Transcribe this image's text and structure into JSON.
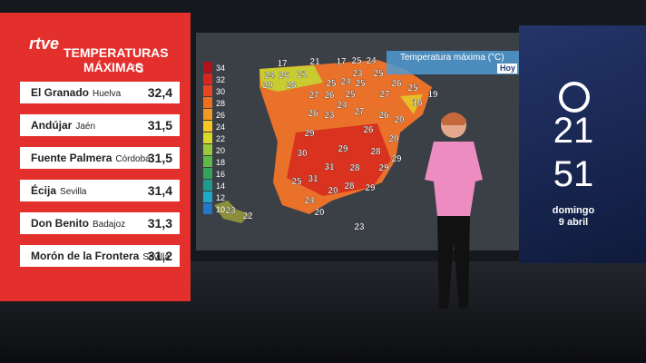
{
  "channel": "rtve",
  "panel": {
    "title": "TEMPERATURAS MÁXIMAS",
    "unit": "°C",
    "rows": [
      {
        "place": "El Granado",
        "province": "Huelva",
        "value": "32,4"
      },
      {
        "place": "Andújar",
        "province": "Jaén",
        "value": "31,5"
      },
      {
        "place": "Fuente Palmera",
        "province": "Córdoba",
        "value": "31,5"
      },
      {
        "place": "Écija",
        "province": "Sevilla",
        "value": "31,4"
      },
      {
        "place": "Don Benito",
        "province": "Badajoz",
        "value": "31,3"
      },
      {
        "place": "Morón de la Frontera",
        "province": "Sevilla",
        "value": "31,2"
      }
    ]
  },
  "map": {
    "title": "Temperatura máxima (°C)",
    "day": "Hoy",
    "scale": [
      {
        "value": 34,
        "color": "#b3121a"
      },
      {
        "value": 32,
        "color": "#d8261f"
      },
      {
        "value": 30,
        "color": "#e8461f"
      },
      {
        "value": 28,
        "color": "#ef6f1f"
      },
      {
        "value": 26,
        "color": "#f39a22"
      },
      {
        "value": 24,
        "color": "#f5c626"
      },
      {
        "value": 22,
        "color": "#d9d92a"
      },
      {
        "value": 20,
        "color": "#9cc93a"
      },
      {
        "value": 18,
        "color": "#5fb847"
      },
      {
        "value": 16,
        "color": "#35a45a"
      },
      {
        "value": 14,
        "color": "#1f9c8a"
      },
      {
        "value": 12,
        "color": "#1fa8c8"
      },
      {
        "value": 10,
        "color": "#2277c8"
      }
    ],
    "labels": [
      17,
      21,
      17,
      25,
      24,
      24,
      26,
      21,
      23,
      25,
      20,
      28,
      25,
      24,
      25,
      26,
      25,
      19,
      27,
      26,
      25,
      27,
      24,
      18,
      26,
      23,
      27,
      26,
      20,
      29,
      26,
      20,
      29,
      28,
      30,
      29,
      31,
      28,
      29,
      25,
      31,
      20,
      28,
      29,
      24,
      20,
      23,
      22,
      23
    ]
  },
  "clock": {
    "hour": "21",
    "minute": "51",
    "weekday": "domingo",
    "date": "9 abril"
  }
}
